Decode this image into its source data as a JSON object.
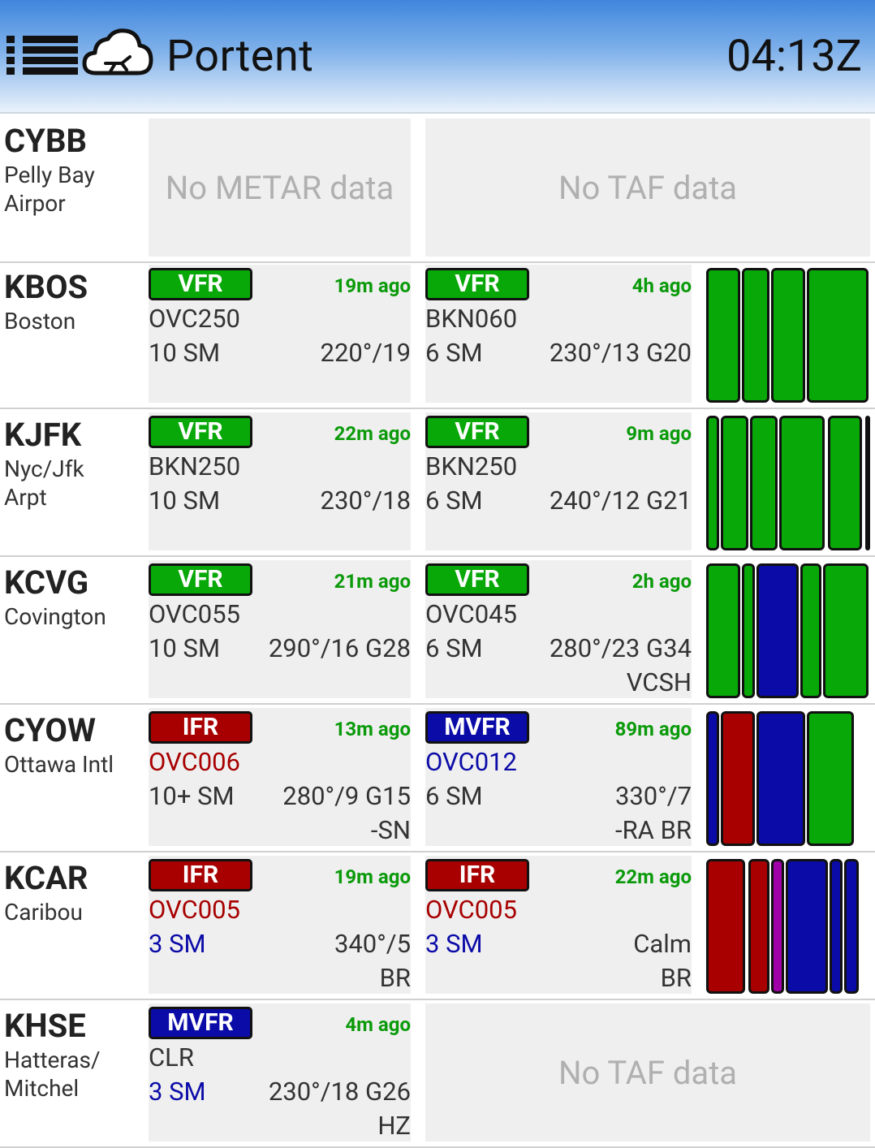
{
  "header": {
    "app_name": "Portent",
    "time": "04:13Z",
    "menu_icon": "menu-list-icon",
    "logo_icon": "cloud-plane-icon"
  },
  "colors": {
    "VFR": "#08a808",
    "MVFR": "#0b0ba8",
    "IFR": "#a80000",
    "LIFR": "#a000a8"
  },
  "stations": [
    {
      "code": "CYBB",
      "name": "Pelly Bay\nAirpor",
      "metar": null,
      "metar_empty_text": "No METAR data",
      "taf": null,
      "taf_empty_text": "No TAF data"
    },
    {
      "code": "KBOS",
      "name": "Boston",
      "metar": {
        "category": "VFR",
        "age": "19m ago",
        "sky": "OVC250",
        "vis": "10 SM",
        "wind": "220°/19",
        "wx": ""
      },
      "taf": {
        "category": "VFR",
        "age": "4h ago",
        "sky": "BKN060",
        "vis": "6 SM",
        "wind": "230°/13 G20",
        "wx": ""
      },
      "timeline": [
        "VFR",
        "VFR",
        "VFR",
        "VFR"
      ]
    },
    {
      "code": "KJFK",
      "name": "Nyc/Jfk\nArpt",
      "metar": {
        "category": "VFR",
        "age": "22m ago",
        "sky": "BKN250",
        "vis": "10 SM",
        "wind": "230°/18",
        "wx": ""
      },
      "taf": {
        "category": "VFR",
        "age": "9m ago",
        "sky": "BKN250",
        "vis": "6 SM",
        "wind": "240°/12 G21",
        "wx": ""
      },
      "timeline": [
        "VFR",
        "VFR",
        "VFR",
        "VFR",
        "VFR",
        "VFR"
      ]
    },
    {
      "code": "KCVG",
      "name": "Covington",
      "metar": {
        "category": "VFR",
        "age": "21m ago",
        "sky": "OVC055",
        "vis": "10 SM",
        "wind": "290°/16 G28",
        "wx": ""
      },
      "taf": {
        "category": "VFR",
        "age": "2h ago",
        "sky": "OVC045",
        "vis": "6 SM",
        "wind": "280°/23 G34",
        "wx": "VCSH"
      },
      "timeline": [
        "VFR",
        "VFR",
        "MVFR",
        "VFR",
        "VFR"
      ]
    },
    {
      "code": "CYOW",
      "name": "Ottawa Intl",
      "metar": {
        "category": "IFR",
        "age": "13m ago",
        "sky": "OVC006",
        "vis": "10+ SM",
        "wind": "280°/9 G15",
        "wx": "-SN"
      },
      "taf": {
        "category": "MVFR",
        "age": "89m ago",
        "sky": "OVC012",
        "vis": "6 SM",
        "wind": "330°/7",
        "wx": "-RA BR"
      },
      "timeline": [
        "MVFR",
        "IFR",
        "MVFR",
        "VFR"
      ]
    },
    {
      "code": "KCAR",
      "name": "Caribou",
      "metar": {
        "category": "IFR",
        "age": "19m ago",
        "sky": "OVC005",
        "vis": "3 SM",
        "wind": "340°/5",
        "wx": "BR"
      },
      "taf": {
        "category": "IFR",
        "age": "22m ago",
        "sky": "OVC005",
        "vis": "3 SM",
        "wind": "Calm",
        "wx": "BR"
      },
      "timeline": [
        "IFR",
        "IFR",
        "LIFR",
        "MVFR",
        "MVFR",
        "MVFR"
      ]
    },
    {
      "code": "KHSE",
      "name": "Hatteras/\nMitchel",
      "metar": {
        "category": "MVFR",
        "age": "4m ago",
        "sky": "CLR",
        "vis": "3 SM",
        "wind": "230°/18 G26",
        "wx": "HZ"
      },
      "taf": null,
      "taf_empty_text": "No TAF data"
    }
  ]
}
